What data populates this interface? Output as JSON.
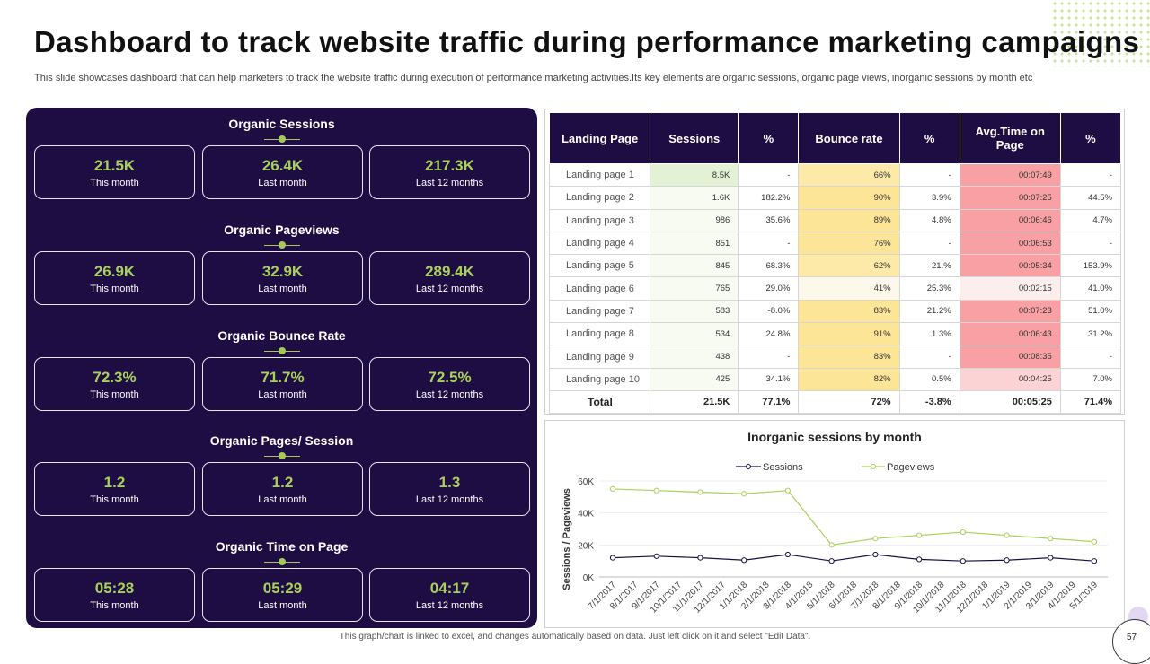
{
  "title": "Dashboard to track website traffic during performance marketing campaigns",
  "subtitle": "This slide showcases dashboard that can help marketers to track the website traffic during execution of performance marketing activities.Its key elements are organic sessions, organic page views, inorganic sessions by month etc",
  "colors": {
    "panel": "#1e0d42",
    "accent": "#a9d15a",
    "green_cell": "#e3f1d4",
    "yellow_cell": "#fde598",
    "red_cell": "#f8a0a3",
    "sessions_line": "#1e0d42",
    "pageviews_line": "#a9d15a"
  },
  "metrics": [
    {
      "title": "Organic Sessions",
      "cards": [
        {
          "value": "21.5K",
          "label": "This month"
        },
        {
          "value": "26.4K",
          "label": "Last month"
        },
        {
          "value": "217.3K",
          "label": "Last 12 months"
        }
      ]
    },
    {
      "title": "Organic Pageviews",
      "cards": [
        {
          "value": "26.9K",
          "label": "This month"
        },
        {
          "value": "32.9K",
          "label": "Last month"
        },
        {
          "value": "289.4K",
          "label": "Last 12 months"
        }
      ]
    },
    {
      "title": "Organic Bounce Rate",
      "cards": [
        {
          "value": "72.3%",
          "label": "This month"
        },
        {
          "value": "71.7%",
          "label": "Last month"
        },
        {
          "value": "72.5%",
          "label": "Last 12 months"
        }
      ]
    },
    {
      "title": "Organic Pages/ Session",
      "cards": [
        {
          "value": "1.2",
          "label": "This month"
        },
        {
          "value": "1.2",
          "label": "Last month"
        },
        {
          "value": "1.3",
          "label": "Last 12 months"
        }
      ]
    },
    {
      "title": "Organic Time on Page",
      "cards": [
        {
          "value": "05:28",
          "label": "This month"
        },
        {
          "value": "05:29",
          "label": "Last month"
        },
        {
          "value": "04:17",
          "label": "Last 12 months"
        }
      ]
    }
  ],
  "table": {
    "headers": [
      "Landing Page",
      "Sessions",
      "%",
      "Bounce rate",
      "%",
      "Avg.Time on Page",
      "%"
    ],
    "rows": [
      [
        "Landing page 1",
        "8.5K",
        "-",
        "66%",
        "-",
        "00:07:49",
        "-"
      ],
      [
        "Landing page 2",
        "1.6K",
        "182.2%",
        "90%",
        "3.9%",
        "00:07:25",
        "44.5%"
      ],
      [
        "Landing page 3",
        "986",
        "35.6%",
        "89%",
        "4.8%",
        "00:06:46",
        "4.7%"
      ],
      [
        "Landing page 4",
        "851",
        "-",
        "76%",
        "-",
        "00:06:53",
        "-"
      ],
      [
        "Landing page 5",
        "845",
        "68.3%",
        "62%",
        "21.%",
        "00:05:34",
        "153.9%"
      ],
      [
        "Landing page 6",
        "765",
        "29.0%",
        "41%",
        "25.3%",
        "00:02:15",
        "41.0%"
      ],
      [
        "Landing page 7",
        "583",
        "-8.0%",
        "83%",
        "21.2%",
        "00:07:23",
        "51.0%"
      ],
      [
        "Landing page 8",
        "534",
        "24.8%",
        "91%",
        "1.3%",
        "00:06:43",
        "31.2%"
      ],
      [
        "Landing page 9",
        "438",
        "-",
        "83%",
        "-",
        "00:08:35",
        "-"
      ],
      [
        "Landing page 10",
        "425",
        "34.1%",
        "82%",
        "0.5%",
        "00:04:25",
        "7.0%"
      ]
    ],
    "total": [
      "Total",
      "21.5K",
      "77.1%",
      "72%",
      "-3.8%",
      "00:05:25",
      "71.4%"
    ]
  },
  "chart_data": {
    "type": "line",
    "title": "Inorganic sessions by month",
    "xlabel": "",
    "ylabel": "Sessions / Pageviews",
    "ylim": [
      0,
      60000
    ],
    "yticks": [
      "0K",
      "20K",
      "40K",
      "60K"
    ],
    "legend_position": "top",
    "categories": [
      "7/1/2017",
      "8/1/2017",
      "9/1/2017",
      "10/1/2017",
      "11/1/2017",
      "12/1/2017",
      "1/1/2018",
      "2/1/2018",
      "3/1/2018",
      "4/1/2018",
      "5/1/2018",
      "6/1/2018",
      "7/1/2018",
      "8/1/2018",
      "9/1/2018",
      "10/1/2018",
      "11/1/2018",
      "12/1/2018",
      "1/1/2019",
      "2/1/2019",
      "3/1/2019",
      "4/1/2019",
      "5/1/2019"
    ],
    "series": [
      {
        "name": "Sessions",
        "points": [
          [
            "7/1/2017",
            12000
          ],
          [
            "9/1/2017",
            13000
          ],
          [
            "11/1/2017",
            12000
          ],
          [
            "1/1/2018",
            10500
          ],
          [
            "3/1/2018",
            14000
          ],
          [
            "5/1/2018",
            10000
          ],
          [
            "7/1/2018",
            14000
          ],
          [
            "9/1/2018",
            11000
          ],
          [
            "11/1/2018",
            10000
          ],
          [
            "1/1/2019",
            10500
          ],
          [
            "3/1/2019",
            12000
          ],
          [
            "5/1/2019",
            10000
          ]
        ]
      },
      {
        "name": "Pageviews",
        "points": [
          [
            "7/1/2017",
            55000
          ],
          [
            "9/1/2017",
            54000
          ],
          [
            "11/1/2017",
            53000
          ],
          [
            "1/1/2018",
            52000
          ],
          [
            "3/1/2018",
            54000
          ],
          [
            "5/1/2018",
            20000
          ],
          [
            "7/1/2018",
            24000
          ],
          [
            "9/1/2018",
            26000
          ],
          [
            "11/1/2018",
            28000
          ],
          [
            "1/1/2019",
            26000
          ],
          [
            "3/1/2019",
            24000
          ],
          [
            "5/1/2019",
            22000
          ]
        ]
      }
    ]
  },
  "footer": "This graph/chart is linked to excel, and changes automatically based on data. Just left click on it and select \"Edit Data\".",
  "page_number": "57"
}
